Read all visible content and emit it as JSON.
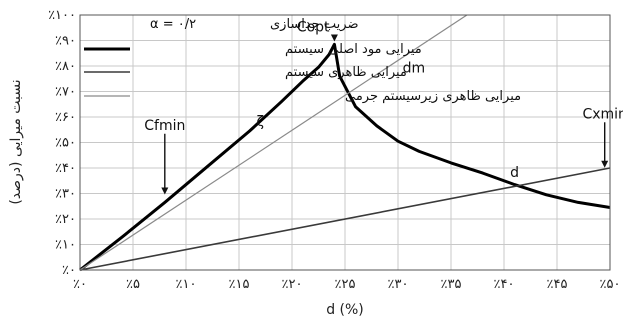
{
  "chart_data": {
    "type": "line",
    "xlabel": "d (%)",
    "ylabel": "نسبت میرایی (درصد)",
    "xlim": [
      0,
      0.5
    ],
    "ylim": [
      0,
      1.0
    ],
    "grid": true,
    "x_tick_labels": [
      "٪۰",
      "٪۵",
      "٪۱۰",
      "٪۱۵",
      "٪۲۰",
      "٪۲۵",
      "٪۳۰",
      "٪۳۵",
      "٪۴۰",
      "٪۴۵",
      "٪۵۰"
    ],
    "y_tick_labels": [
      "٪۰",
      "٪۱۰",
      "٪۲۰",
      "٪۳۰",
      "٪۴۰",
      "٪۵۰",
      "٪۶۰",
      "٪۷۰",
      "٪۸۰",
      "٪۹۰",
      "٪۱۰۰"
    ],
    "alpha_label": "α = ۰/۲",
    "alpha_title": "ضریب جداسازی",
    "legend_position": "top-left",
    "series": [
      {
        "name": "میرایی مود اصلی سیستم",
        "color": "#000000",
        "style": "thick",
        "x": [
          0,
          0.04,
          0.08,
          0.12,
          0.16,
          0.19,
          0.21,
          0.225,
          0.235,
          0.24,
          0.245,
          0.26,
          0.28,
          0.3,
          0.32,
          0.35,
          0.38,
          0.41,
          0.44,
          0.47,
          0.5
        ],
        "y": [
          0,
          0.13,
          0.265,
          0.405,
          0.545,
          0.66,
          0.74,
          0.795,
          0.845,
          0.885,
          0.76,
          0.64,
          0.565,
          0.505,
          0.465,
          0.42,
          0.38,
          0.335,
          0.295,
          0.265,
          0.245
        ]
      },
      {
        "name": "میرایی ظاهری سیستم",
        "color": "#3a3a3a",
        "style": "medium",
        "x": [
          0,
          0.5
        ],
        "y": [
          0,
          0.4
        ]
      },
      {
        "name": "میرایی ظاهری زیرسیستم جرمی",
        "color": "#8a8a8a",
        "style": "thin",
        "x": [
          0,
          0.365
        ],
        "y": [
          0,
          1.0
        ]
      }
    ],
    "annotations": [
      {
        "text": "Copt",
        "x": 0.22,
        "y": 0.935,
        "arrow": true,
        "arrow_to": [
          0.24,
          0.9
        ]
      },
      {
        "text": "Cfmin",
        "x": 0.08,
        "y": 0.55,
        "arrow": true,
        "arrow_to": [
          0.08,
          0.3
        ]
      },
      {
        "text": "Cxmin",
        "x": 0.495,
        "y": 0.595,
        "arrow": true,
        "arrow_to": [
          0.495,
          0.405
        ]
      },
      {
        "text": "dm",
        "x": 0.315,
        "y": 0.775,
        "arrow": false
      },
      {
        "text": "d",
        "x": 0.41,
        "y": 0.365,
        "arrow": false
      },
      {
        "text": "ζ",
        "x": 0.17,
        "y": 0.565,
        "arrow": false
      }
    ]
  }
}
